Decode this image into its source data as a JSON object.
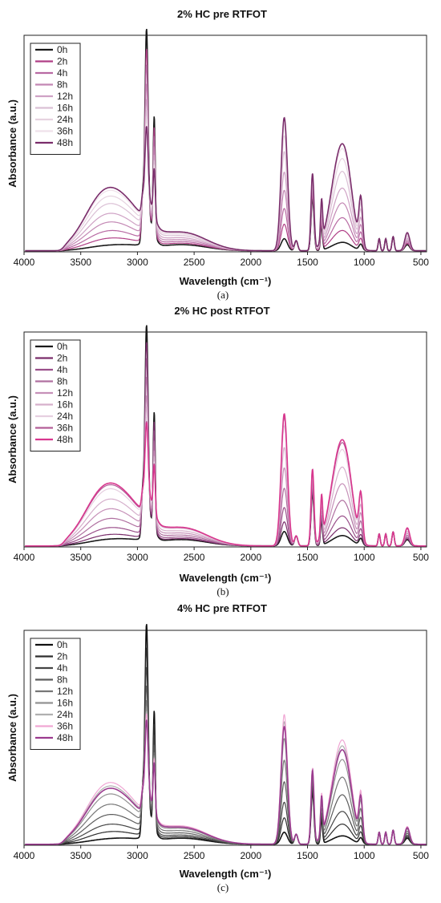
{
  "chart_data": [
    {
      "type": "line",
      "title": "2% HC pre RTFOT",
      "xlabel": "Wavelength (cm⁻¹)",
      "ylabel": "Absorbance (a.u.)",
      "caption": "(a)",
      "xlim": [
        4000,
        450
      ],
      "xticks": [
        4000,
        3500,
        3000,
        2500,
        2000,
        1500,
        1000,
        500
      ],
      "legend_position": "top-left",
      "series": [
        {
          "name": "0h",
          "color": "#1a1a1a",
          "scale": 0.0,
          "base": 1.0
        },
        {
          "name": "2h",
          "color": "#b03f86",
          "scale": 0.12,
          "base": 0.88
        },
        {
          "name": "4h",
          "color": "#b86aa3",
          "scale": 0.25,
          "base": 0.78
        },
        {
          "name": "8h",
          "color": "#c387b4",
          "scale": 0.4,
          "base": 0.66
        },
        {
          "name": "12h",
          "color": "#cfa2c5",
          "scale": 0.55,
          "base": 0.56
        },
        {
          "name": "16h",
          "color": "#dbc0d5",
          "scale": 0.72,
          "base": 0.48
        },
        {
          "name": "24h",
          "color": "#e6d3e0",
          "scale": 0.85,
          "base": 0.42
        },
        {
          "name": "36h",
          "color": "#efe1ea",
          "scale": 0.95,
          "base": 0.38
        },
        {
          "name": "48h",
          "color": "#7a2d6b",
          "scale": 1.0,
          "base": 0.36
        }
      ]
    },
    {
      "type": "line",
      "title": "2% HC post RTFOT",
      "xlabel": "Wavelength (cm⁻¹)",
      "ylabel": "Absorbance (a.u.)",
      "caption": "(b)",
      "xlim": [
        4000,
        450
      ],
      "xticks": [
        4000,
        3500,
        3000,
        2500,
        2000,
        1500,
        1000,
        500
      ],
      "legend_position": "top-left",
      "series": [
        {
          "name": "0h",
          "color": "#1a1a1a",
          "scale": 0.02,
          "base": 1.0
        },
        {
          "name": "2h",
          "color": "#7a2d6b",
          "scale": 0.1,
          "base": 0.9
        },
        {
          "name": "4h",
          "color": "#9a4f8a",
          "scale": 0.22,
          "base": 0.8
        },
        {
          "name": "8h",
          "color": "#b070a0",
          "scale": 0.38,
          "base": 0.68
        },
        {
          "name": "12h",
          "color": "#c690b8",
          "scale": 0.55,
          "base": 0.56
        },
        {
          "name": "16h",
          "color": "#d6b0cc",
          "scale": 0.72,
          "base": 0.48
        },
        {
          "name": "24h",
          "color": "#e6cfe0",
          "scale": 0.9,
          "base": 0.4
        },
        {
          "name": "36h",
          "color": "#b35e98",
          "scale": 0.97,
          "base": 0.37
        },
        {
          "name": "48h",
          "color": "#d8378e",
          "scale": 1.0,
          "base": 0.36
        }
      ]
    },
    {
      "type": "line",
      "title": "4% HC pre RTFOT",
      "xlabel": "Wavelength (cm⁻¹)",
      "ylabel": "Absorbance (a.u.)",
      "caption": "(c)",
      "xlim": [
        4000,
        450
      ],
      "xticks": [
        4000,
        3500,
        3000,
        2500,
        2000,
        1500,
        1000,
        500
      ],
      "legend_position": "top-left",
      "series": [
        {
          "name": "0h",
          "color": "#111111",
          "scale": 0.0,
          "base": 1.0
        },
        {
          "name": "2h",
          "color": "#2e2e2e",
          "scale": 0.12,
          "base": 0.86
        },
        {
          "name": "4h",
          "color": "#444444",
          "scale": 0.25,
          "base": 0.74
        },
        {
          "name": "8h",
          "color": "#5c5c5c",
          "scale": 0.42,
          "base": 0.62
        },
        {
          "name": "12h",
          "color": "#777777",
          "scale": 0.6,
          "base": 0.52
        },
        {
          "name": "16h",
          "color": "#929292",
          "scale": 0.78,
          "base": 0.46
        },
        {
          "name": "24h",
          "color": "#b0b0b0",
          "scale": 0.92,
          "base": 0.42
        },
        {
          "name": "36h",
          "color": "#f0a6d4",
          "scale": 0.98,
          "base": 0.4
        },
        {
          "name": "48h",
          "color": "#9b3b8f",
          "scale": 0.88,
          "base": 0.38
        }
      ]
    }
  ]
}
